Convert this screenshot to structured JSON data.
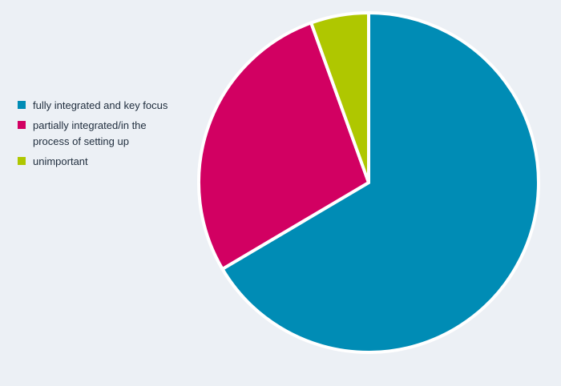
{
  "chart_data": {
    "type": "pie",
    "title": "",
    "legend_position": "left",
    "slices": [
      {
        "label": "fully integrated and key focus",
        "value": 66.5,
        "color": "#008cb5"
      },
      {
        "label": "partially integrated/in the process of setting up",
        "value": 28,
        "color": "#d20062"
      },
      {
        "label": "unimportant",
        "value": 5.5,
        "color": "#afc700"
      }
    ]
  }
}
